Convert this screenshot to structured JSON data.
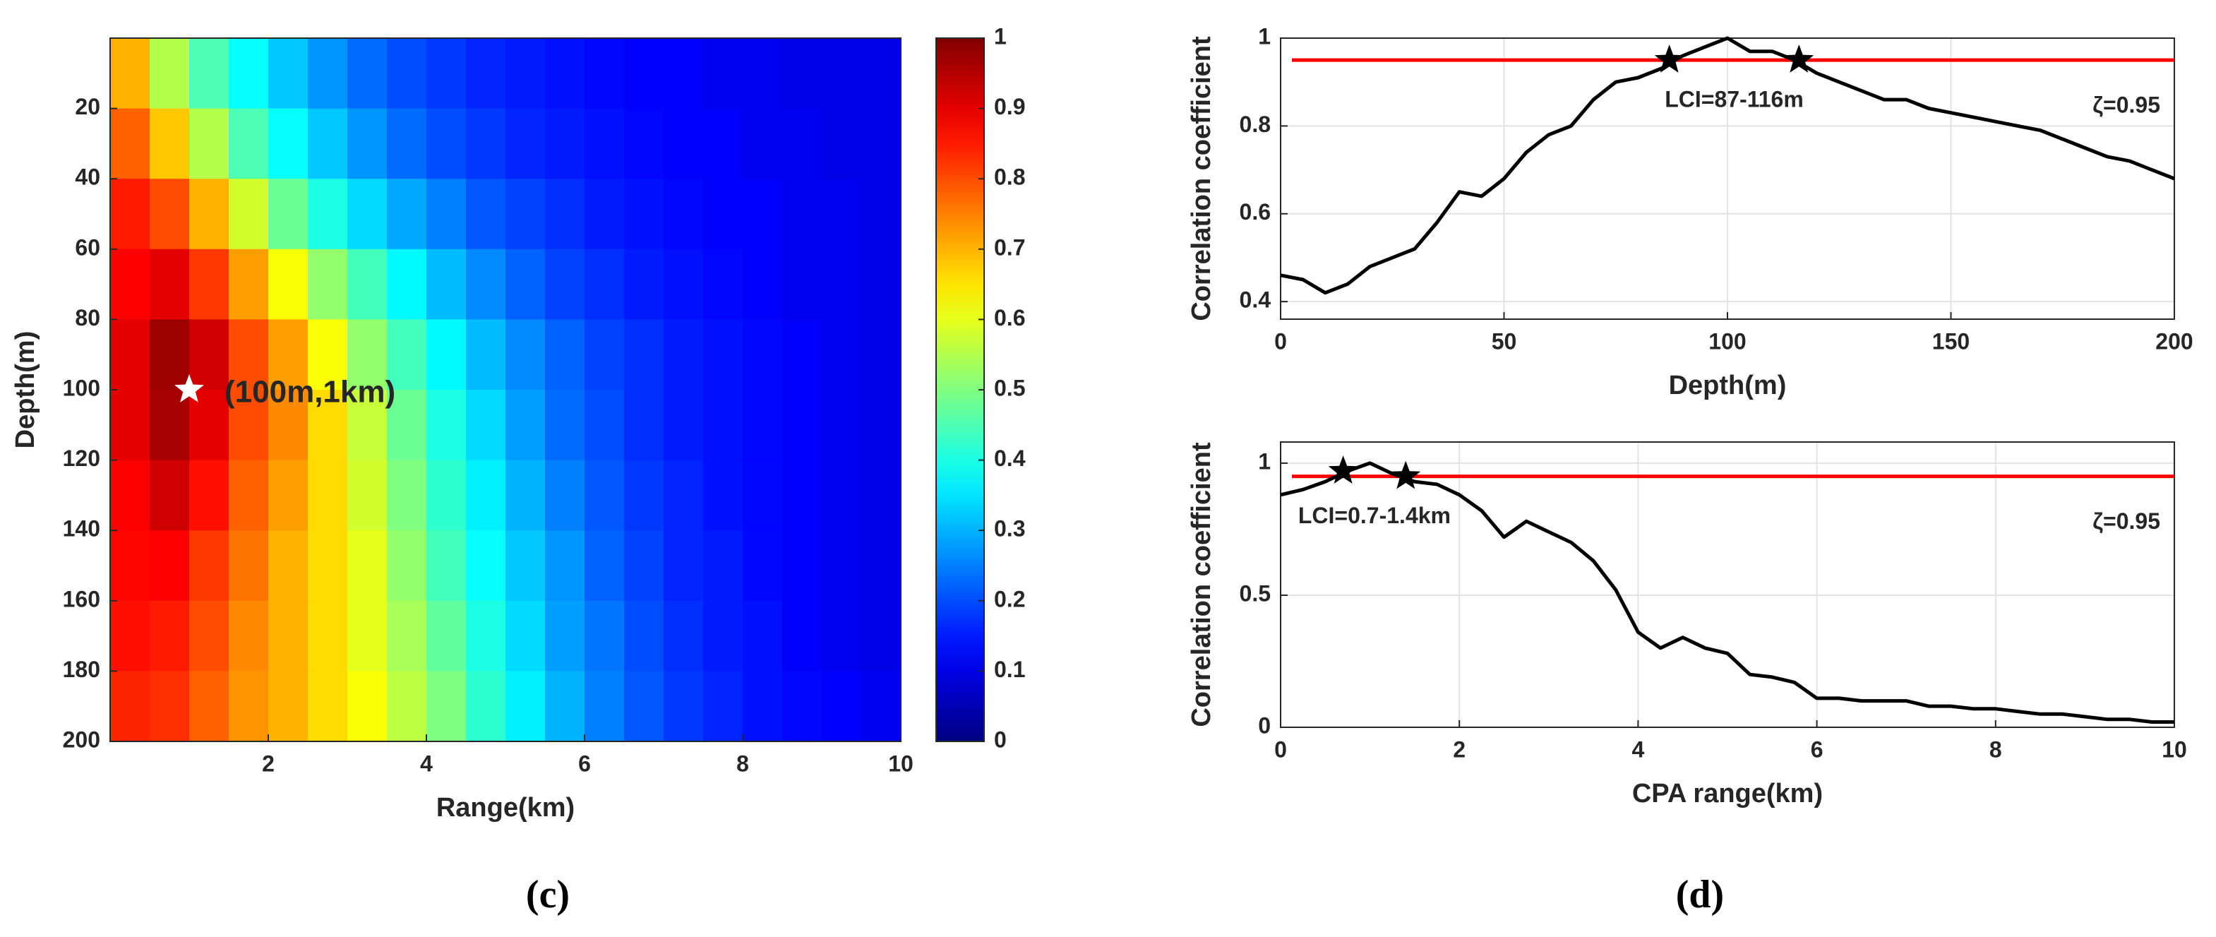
{
  "chart_data": [
    {
      "type": "heatmap",
      "panel_label": "(c)",
      "xlabel": "Range(km)",
      "ylabel": "Depth(m)",
      "xbins": [
        0,
        0.5,
        1,
        1.5,
        2,
        2.5,
        3,
        3.5,
        4,
        4.5,
        5,
        5.5,
        6,
        6.5,
        7,
        7.5,
        8,
        8.5,
        9,
        9.5,
        10
      ],
      "ybins": [
        0,
        20,
        40,
        60,
        80,
        100,
        120,
        140,
        160,
        180,
        200
      ],
      "values": [
        [
          0.7,
          0.55,
          0.45,
          0.38,
          0.32,
          0.27,
          0.23,
          0.2,
          0.18,
          0.16,
          0.15,
          0.14,
          0.13,
          0.12,
          0.12,
          0.11,
          0.11,
          0.1,
          0.1,
          0.1
        ],
        [
          0.78,
          0.68,
          0.55,
          0.45,
          0.38,
          0.32,
          0.27,
          0.23,
          0.2,
          0.18,
          0.16,
          0.15,
          0.14,
          0.13,
          0.12,
          0.12,
          0.11,
          0.11,
          0.1,
          0.1
        ],
        [
          0.85,
          0.8,
          0.7,
          0.58,
          0.48,
          0.4,
          0.34,
          0.29,
          0.25,
          0.21,
          0.19,
          0.17,
          0.15,
          0.14,
          0.13,
          0.12,
          0.12,
          0.11,
          0.11,
          0.1
        ],
        [
          0.88,
          0.9,
          0.82,
          0.72,
          0.62,
          0.52,
          0.44,
          0.37,
          0.31,
          0.26,
          0.22,
          0.19,
          0.17,
          0.15,
          0.14,
          0.13,
          0.12,
          0.11,
          0.11,
          0.1
        ],
        [
          0.9,
          0.97,
          0.92,
          0.8,
          0.72,
          0.62,
          0.52,
          0.44,
          0.37,
          0.31,
          0.26,
          0.22,
          0.19,
          0.17,
          0.15,
          0.14,
          0.13,
          0.12,
          0.11,
          0.1
        ],
        [
          0.9,
          0.96,
          0.9,
          0.8,
          0.74,
          0.66,
          0.57,
          0.48,
          0.4,
          0.34,
          0.28,
          0.23,
          0.2,
          0.17,
          0.15,
          0.14,
          0.13,
          0.12,
          0.11,
          0.1
        ],
        [
          0.88,
          0.92,
          0.86,
          0.78,
          0.72,
          0.66,
          0.58,
          0.5,
          0.42,
          0.36,
          0.3,
          0.25,
          0.21,
          0.18,
          0.16,
          0.14,
          0.13,
          0.12,
          0.11,
          0.1
        ],
        [
          0.87,
          0.88,
          0.82,
          0.76,
          0.7,
          0.66,
          0.6,
          0.52,
          0.44,
          0.38,
          0.32,
          0.27,
          0.22,
          0.19,
          0.16,
          0.15,
          0.13,
          0.12,
          0.11,
          0.1
        ],
        [
          0.86,
          0.85,
          0.8,
          0.74,
          0.7,
          0.66,
          0.6,
          0.54,
          0.47,
          0.4,
          0.34,
          0.28,
          0.24,
          0.2,
          0.17,
          0.15,
          0.14,
          0.12,
          0.11,
          0.1
        ],
        [
          0.84,
          0.83,
          0.78,
          0.73,
          0.7,
          0.66,
          0.62,
          0.56,
          0.5,
          0.42,
          0.36,
          0.3,
          0.25,
          0.21,
          0.18,
          0.16,
          0.14,
          0.13,
          0.12,
          0.11
        ]
      ],
      "xlim": [
        0,
        10
      ],
      "xticks": [
        2,
        4,
        6,
        8,
        10
      ],
      "ylim": [
        0,
        200
      ],
      "yticks": [
        20,
        40,
        60,
        80,
        100,
        120,
        140,
        160,
        180,
        200
      ],
      "y_reversed": true,
      "colormap": "jet",
      "colorbar": {
        "lim": [
          0,
          1
        ],
        "ticks": [
          0,
          0.1,
          0.2,
          0.3,
          0.4,
          0.5,
          0.6,
          0.7,
          0.8,
          0.9,
          1
        ]
      },
      "annotation": {
        "text": "(100m,1km)",
        "x": 1,
        "y": 100
      }
    },
    {
      "type": "line",
      "panel_label": "(d)",
      "xlabel": "Depth(m)",
      "ylabel": "Correlation coefficient",
      "x": [
        0,
        5,
        10,
        15,
        20,
        25,
        30,
        35,
        40,
        45,
        50,
        55,
        60,
        65,
        70,
        75,
        80,
        85,
        90,
        95,
        100,
        105,
        110,
        115,
        120,
        125,
        130,
        135,
        140,
        145,
        150,
        155,
        160,
        165,
        170,
        175,
        180,
        185,
        190,
        195,
        200
      ],
      "series": [
        {
          "color": "#000000",
          "values": [
            0.46,
            0.45,
            0.42,
            0.44,
            0.48,
            0.5,
            0.52,
            0.58,
            0.65,
            0.64,
            0.68,
            0.74,
            0.78,
            0.8,
            0.86,
            0.9,
            0.91,
            0.93,
            0.96,
            0.98,
            1.0,
            0.97,
            0.97,
            0.95,
            0.92,
            0.9,
            0.88,
            0.86,
            0.86,
            0.84,
            0.83,
            0.82,
            0.81,
            0.8,
            0.79,
            0.77,
            0.75,
            0.73,
            0.72,
            0.7,
            0.68
          ]
        }
      ],
      "markers": {
        "x": [
          87,
          116
        ],
        "y": [
          0.95,
          0.95
        ]
      },
      "threshold": 0.95,
      "threshold_color": "#ff0000",
      "threshold_label": "ζ=0.95",
      "annotation": "LCI=87-116m",
      "xlim": [
        0,
        200
      ],
      "xticks": [
        0,
        50,
        100,
        150,
        200
      ],
      "ylim": [
        0.36,
        1
      ],
      "yticks": [
        0.4,
        0.6,
        0.8,
        1
      ],
      "grid": true
    },
    {
      "type": "line",
      "xlabel": "CPA range(km)",
      "ylabel": "Correlation coefficient",
      "x": [
        0,
        0.25,
        0.5,
        0.75,
        1,
        1.25,
        1.5,
        1.75,
        2,
        2.25,
        2.5,
        2.75,
        3,
        3.25,
        3.5,
        3.75,
        4,
        4.25,
        4.5,
        4.75,
        5,
        5.25,
        5.5,
        5.75,
        6,
        6.25,
        6.5,
        6.75,
        7,
        7.25,
        7.5,
        7.75,
        8,
        8.25,
        8.5,
        8.75,
        9,
        9.25,
        9.5,
        9.75,
        10
      ],
      "series": [
        {
          "color": "#000000",
          "values": [
            0.88,
            0.9,
            0.93,
            0.97,
            1.0,
            0.96,
            0.93,
            0.92,
            0.88,
            0.82,
            0.72,
            0.78,
            0.74,
            0.7,
            0.63,
            0.52,
            0.36,
            0.3,
            0.34,
            0.3,
            0.28,
            0.2,
            0.19,
            0.17,
            0.11,
            0.11,
            0.1,
            0.1,
            0.1,
            0.08,
            0.08,
            0.07,
            0.07,
            0.06,
            0.05,
            0.05,
            0.04,
            0.03,
            0.03,
            0.02,
            0.02
          ]
        }
      ],
      "markers": {
        "x": [
          0.7,
          1.4
        ],
        "y": [
          0.97,
          0.95
        ]
      },
      "threshold": 0.95,
      "threshold_color": "#ff0000",
      "threshold_label": "ζ=0.95",
      "annotation": "LCI=0.7-1.4km",
      "xlim": [
        0,
        10
      ],
      "xticks": [
        0,
        2,
        4,
        6,
        8,
        10
      ],
      "ylim": [
        0,
        1.08
      ],
      "yticks": [
        0,
        0.5,
        1
      ],
      "grid": true
    }
  ]
}
